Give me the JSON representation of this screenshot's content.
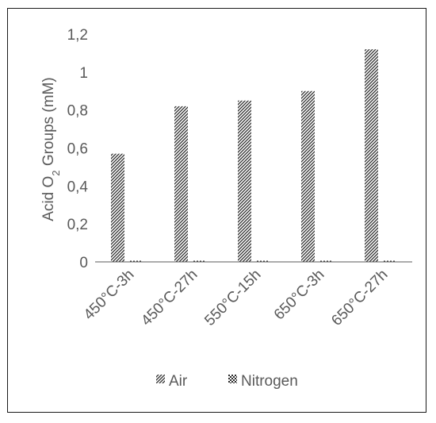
{
  "chart_data": {
    "type": "bar",
    "categories": [
      "450°C-3h",
      "450°C-27h",
      "550°C-15h",
      "650°C-3h",
      "650°C-27h"
    ],
    "series": [
      {
        "name": "Air",
        "values": [
          0.57,
          0.82,
          0.85,
          0.9,
          1.12
        ],
        "pattern": "diagonal-hatch"
      },
      {
        "name": "Nitrogen",
        "values": [
          0.005,
          0.005,
          0.005,
          0.005,
          0.005
        ],
        "pattern": "checker"
      }
    ],
    "ylabel_parts": {
      "before": "Acid O",
      "sub": "2",
      "after": " Groups (mM)"
    },
    "xlabel": "",
    "ylim": [
      0,
      1.2
    ],
    "yticks": [
      0,
      0.2,
      0.4,
      0.6,
      0.8,
      1,
      1.2
    ],
    "ytick_labels": [
      "0",
      "0,2",
      "0,4",
      "0,6",
      "0,8",
      "1",
      "1,2"
    ],
    "legend_position": "bottom",
    "grid": false,
    "colors": {
      "axis": "#595959",
      "pattern": "#2b2b2b",
      "text": "#595959",
      "border": "#1a1a1a"
    }
  }
}
